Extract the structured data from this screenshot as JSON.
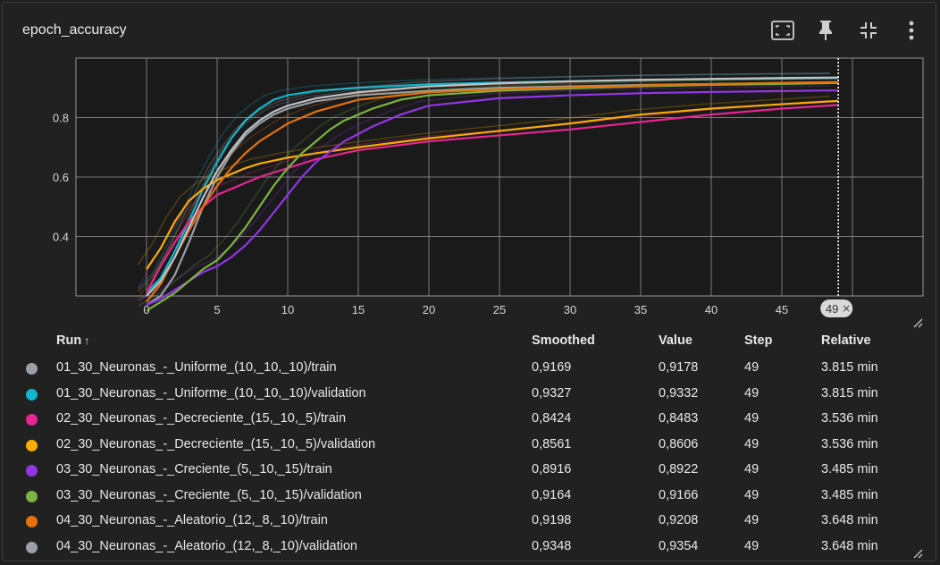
{
  "title": "epoch_accuracy",
  "icons": [
    "fit-domain-icon",
    "pin-icon",
    "collapse-icon",
    "more-vert-icon"
  ],
  "table": {
    "headers": {
      "run": "Run",
      "sort_glyph": "↑",
      "smoothed": "Smoothed",
      "value": "Value",
      "step": "Step",
      "relative": "Relative"
    },
    "rows": [
      {
        "color": "#9aa0a6",
        "run": "01_30_Neuronas_-_Uniforme_(10,_10,_10)/train",
        "smoothed": "0,9169",
        "value": "0,9178",
        "step": "49",
        "relative": "3.815 min"
      },
      {
        "color": "#12b5cb",
        "run": "01_30_Neuronas_-_Uniforme_(10,_10,_10)/validation",
        "smoothed": "0,9327",
        "value": "0,9332",
        "step": "49",
        "relative": "3.815 min"
      },
      {
        "color": "#e52592",
        "run": "02_30_Neuronas_-_Decreciente_(15,_10,_5)/train",
        "smoothed": "0,8424",
        "value": "0,8483",
        "step": "49",
        "relative": "3.536 min"
      },
      {
        "color": "#f9ab00",
        "run": "02_30_Neuronas_-_Decreciente_(15,_10,_5)/validation",
        "smoothed": "0,8561",
        "value": "0,8606",
        "step": "49",
        "relative": "3.536 min"
      },
      {
        "color": "#9334e6",
        "run": "03_30_Neuronas_-_Creciente_(5,_10,_15)/train",
        "smoothed": "0,8916",
        "value": "0,8922",
        "step": "49",
        "relative": "3.485 min"
      },
      {
        "color": "#7cb342",
        "run": "03_30_Neuronas_-_Creciente_(5,_10,_15)/validation",
        "smoothed": "0,9164",
        "value": "0,9166",
        "step": "49",
        "relative": "3.485 min"
      },
      {
        "color": "#e8710a",
        "run": "04_30_Neuronas_-_Aleatorio_(12,_8,_10)/train",
        "smoothed": "0,9198",
        "value": "0,9208",
        "step": "49",
        "relative": "3.648 min"
      },
      {
        "color": "#9aa0a6",
        "run": "04_30_Neuronas_-_Aleatorio_(12,_8,_10)/validation",
        "smoothed": "0,9348",
        "value": "0,9354",
        "step": "49",
        "relative": "3.648 min"
      }
    ]
  },
  "chart_data": {
    "type": "line",
    "xlim": [
      -5,
      55
    ],
    "ylim": [
      0.2,
      1.0
    ],
    "xticks": [
      "0",
      "5",
      "10",
      "15",
      "20",
      "25",
      "30",
      "35",
      "40",
      "45"
    ],
    "yticks": [
      "0.4",
      "0.6",
      "0.8"
    ],
    "grid": true,
    "hover_step": 49,
    "hover_label": "49",
    "series": [
      {
        "color": "#9aa0a6",
        "x": [
          0,
          1,
          2,
          3,
          4,
          5,
          6,
          7,
          8,
          9,
          10,
          12,
          15,
          20,
          25,
          30,
          35,
          40,
          45,
          49
        ],
        "y": [
          0.17,
          0.2,
          0.27,
          0.38,
          0.5,
          0.6,
          0.68,
          0.74,
          0.78,
          0.81,
          0.83,
          0.855,
          0.875,
          0.89,
          0.9,
          0.905,
          0.91,
          0.913,
          0.915,
          0.9169
        ]
      },
      {
        "color": "#12b5cb",
        "x": [
          0,
          1,
          2,
          3,
          4,
          5,
          6,
          7,
          8,
          9,
          10,
          12,
          15,
          20,
          25,
          30,
          35,
          40,
          45,
          49
        ],
        "y": [
          0.21,
          0.26,
          0.35,
          0.45,
          0.56,
          0.65,
          0.73,
          0.79,
          0.83,
          0.86,
          0.875,
          0.89,
          0.9,
          0.912,
          0.918,
          0.922,
          0.926,
          0.929,
          0.931,
          0.9327
        ]
      },
      {
        "color": "#e52592",
        "x": [
          0,
          1,
          2,
          3,
          4,
          5,
          6,
          7,
          8,
          9,
          10,
          12,
          15,
          20,
          25,
          30,
          35,
          40,
          45,
          49
        ],
        "y": [
          0.21,
          0.3,
          0.38,
          0.45,
          0.5,
          0.54,
          0.56,
          0.58,
          0.6,
          0.615,
          0.63,
          0.66,
          0.69,
          0.72,
          0.74,
          0.76,
          0.785,
          0.81,
          0.83,
          0.8424
        ]
      },
      {
        "color": "#f9ab00",
        "x": [
          0,
          1,
          2,
          3,
          4,
          5,
          6,
          7,
          8,
          9,
          10,
          12,
          15,
          20,
          25,
          30,
          35,
          40,
          45,
          49
        ],
        "y": [
          0.29,
          0.36,
          0.45,
          0.52,
          0.56,
          0.59,
          0.61,
          0.63,
          0.645,
          0.655,
          0.665,
          0.68,
          0.7,
          0.73,
          0.755,
          0.78,
          0.81,
          0.83,
          0.845,
          0.8561
        ]
      },
      {
        "color": "#9334e6",
        "x": [
          0,
          1,
          2,
          3,
          4,
          5,
          6,
          7,
          8,
          9,
          10,
          11,
          12,
          14,
          16,
          18,
          20,
          25,
          30,
          35,
          40,
          45,
          49
        ],
        "y": [
          0.17,
          0.19,
          0.22,
          0.25,
          0.28,
          0.3,
          0.33,
          0.37,
          0.42,
          0.48,
          0.54,
          0.6,
          0.65,
          0.72,
          0.77,
          0.81,
          0.84,
          0.865,
          0.875,
          0.882,
          0.886,
          0.889,
          0.8916
        ]
      },
      {
        "color": "#7cb342",
        "x": [
          0,
          1,
          2,
          3,
          4,
          5,
          6,
          7,
          8,
          9,
          10,
          11,
          12,
          13,
          14,
          16,
          18,
          20,
          25,
          30,
          35,
          40,
          45,
          49
        ],
        "y": [
          0.15,
          0.18,
          0.21,
          0.25,
          0.29,
          0.32,
          0.37,
          0.43,
          0.5,
          0.57,
          0.63,
          0.68,
          0.72,
          0.76,
          0.79,
          0.83,
          0.86,
          0.875,
          0.89,
          0.898,
          0.905,
          0.91,
          0.913,
          0.9164
        ]
      },
      {
        "color": "#e8710a",
        "x": [
          0,
          1,
          2,
          3,
          4,
          5,
          6,
          7,
          8,
          9,
          10,
          12,
          15,
          20,
          25,
          30,
          35,
          40,
          45,
          49
        ],
        "y": [
          0.18,
          0.24,
          0.33,
          0.42,
          0.5,
          0.57,
          0.63,
          0.68,
          0.72,
          0.75,
          0.78,
          0.82,
          0.86,
          0.885,
          0.895,
          0.902,
          0.908,
          0.913,
          0.917,
          0.9198
        ]
      },
      {
        "color": "#bdc1c6",
        "x": [
          0,
          1,
          2,
          3,
          4,
          5,
          6,
          7,
          8,
          9,
          10,
          12,
          15,
          20,
          25,
          30,
          35,
          40,
          45,
          49
        ],
        "y": [
          0.2,
          0.25,
          0.33,
          0.43,
          0.53,
          0.62,
          0.69,
          0.75,
          0.79,
          0.82,
          0.84,
          0.865,
          0.885,
          0.905,
          0.915,
          0.922,
          0.927,
          0.93,
          0.933,
          0.9348
        ]
      }
    ]
  }
}
